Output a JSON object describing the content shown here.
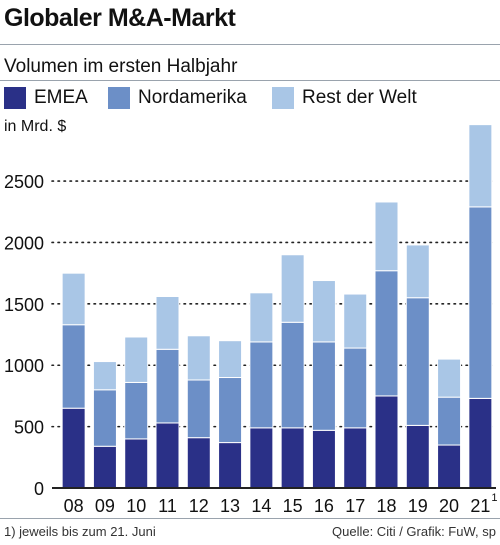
{
  "header": {
    "title": "Globaler M&A-Markt",
    "subtitle": "Volumen im ersten Halbjahr",
    "unit": "in Mrd. $"
  },
  "legend": [
    {
      "label": "EMEA",
      "color": "#2a3087"
    },
    {
      "label": "Nordamerika",
      "color": "#6c8fc7"
    },
    {
      "label": "Rest der Welt",
      "color": "#a9c6e6"
    }
  ],
  "footer": {
    "footnote": "1) jeweils bis zum 21. Juni",
    "source": "Quelle: Citi / Grafik: FuW, sp"
  },
  "chart_data": {
    "type": "bar",
    "stacked": true,
    "categories": [
      "08",
      "09",
      "10",
      "11",
      "12",
      "13",
      "14",
      "15",
      "16",
      "17",
      "18",
      "19",
      "20",
      "21"
    ],
    "category_superscripts": {
      "21": "1"
    },
    "series": [
      {
        "name": "EMEA",
        "color": "#2a3087",
        "values": [
          650,
          340,
          400,
          530,
          410,
          370,
          490,
          490,
          470,
          490,
          750,
          510,
          350,
          730
        ]
      },
      {
        "name": "Nordamerika",
        "color": "#6c8fc7",
        "values": [
          680,
          460,
          460,
          600,
          470,
          530,
          700,
          860,
          720,
          650,
          1020,
          1040,
          390,
          1560
        ]
      },
      {
        "name": "Rest der Welt",
        "color": "#a9c6e6",
        "values": [
          420,
          230,
          370,
          430,
          360,
          300,
          400,
          550,
          500,
          440,
          560,
          430,
          310,
          670
        ]
      }
    ],
    "yticks": [
      0,
      500,
      1000,
      1500,
      2000,
      2500
    ],
    "ylim": [
      0,
      2900
    ],
    "grid": "dotted horizontal",
    "xlabel": "",
    "ylabel": "in Mrd. $"
  }
}
